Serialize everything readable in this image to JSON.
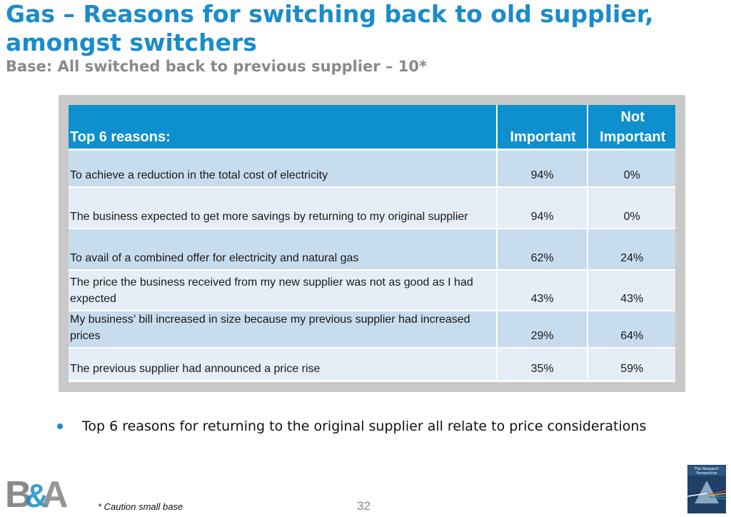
{
  "title": "Gas – Reasons for switching back to old supplier, amongst switchers",
  "subtitle": "Base: All switched back to previous supplier – 10*",
  "table": {
    "headers": {
      "reason": "Top 6 reasons:",
      "important": "Important",
      "not_important_line1": "Not",
      "not_important_line2": "Important"
    },
    "rows": [
      {
        "reason": "To achieve a reduction in the total cost of electricity",
        "important": "94%",
        "not_important": "0%"
      },
      {
        "reason": " The business expected to get more savings by returning to my original supplier",
        "important": "94%",
        "not_important": "0%"
      },
      {
        "reason": "To avail of a combined offer for electricity and natural gas",
        "important": "62%",
        "not_important": "24%"
      },
      {
        "reason": "The price the business received from my new supplier was not as good as I had expected",
        "important": "43%",
        "not_important": "43%"
      },
      {
        "reason": "My business’ bill increased in size because my previous supplier had increased prices",
        "important": "29%",
        "not_important": "64%"
      },
      {
        "reason": "The previous supplier had announced a price rise",
        "important": "35%",
        "not_important": "59%"
      }
    ]
  },
  "bullet": "Top 6 reasons for returning to the original supplier all relate to price considerations",
  "footer": {
    "caution": "* Caution small base",
    "page_number": "32",
    "logo_text": "B&A",
    "research_logo_text": "The Research Perspective"
  },
  "colors": {
    "accent": "#1a8ccb",
    "header_bg": "#0e90cf",
    "row_dark": "#c7dcec",
    "row_light": "#e5eef6"
  }
}
